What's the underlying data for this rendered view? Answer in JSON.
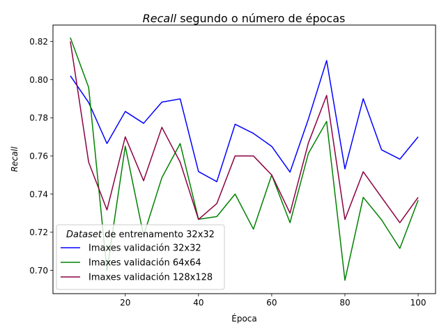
{
  "chart_data": {
    "type": "line",
    "title_italic": "Recall",
    "title_rest": " segundo o número de épocas",
    "xlabel": "Época",
    "ylabel": "Recall",
    "xlim": [
      0.25,
      104.75
    ],
    "ylim": [
      0.6878,
      0.8286
    ],
    "xticks": [
      20,
      40,
      60,
      80,
      100
    ],
    "xtick_labels": [
      "20",
      "40",
      "60",
      "80",
      "100"
    ],
    "yticks": [
      0.7,
      0.72,
      0.74,
      0.76,
      0.78,
      0.8,
      0.82
    ],
    "ytick_labels": [
      "0.70",
      "0.72",
      "0.74",
      "0.76",
      "0.78",
      "0.80",
      "0.82"
    ],
    "grid": false,
    "legend": {
      "placement": "lower-left",
      "title_italic": "Dataset",
      "title_rest": " de entrenamento 32x32"
    },
    "x": [
      5,
      10,
      15,
      20,
      25,
      30,
      35,
      40,
      45,
      50,
      55,
      60,
      65,
      70,
      75,
      80,
      85,
      90,
      95,
      100
    ],
    "series": [
      {
        "name": "Imaxes validación 32x32",
        "color": "#0000ff",
        "values": [
          0.802,
          0.788,
          0.7665,
          0.7833,
          0.7771,
          0.7882,
          0.7899,
          0.7518,
          0.7465,
          0.7766,
          0.7718,
          0.765,
          0.7515,
          0.7792,
          0.81,
          0.7532,
          0.79,
          0.7632,
          0.7583,
          0.77
        ]
      },
      {
        "name": "Imaxes validación 64x64",
        "color": "#008000",
        "values": [
          0.822,
          0.7959,
          0.6999,
          0.7651,
          0.7182,
          0.7486,
          0.7665,
          0.7268,
          0.7282,
          0.74,
          0.7216,
          0.75,
          0.725,
          0.7612,
          0.7781,
          0.6948,
          0.7383,
          0.7265,
          0.7115,
          0.7368
        ]
      },
      {
        "name": "Imaxes validación 128x128",
        "color": "#8b0040",
        "values": [
          0.82,
          0.7567,
          0.7317,
          0.77,
          0.747,
          0.775,
          0.7567,
          0.7267,
          0.735,
          0.76,
          0.76,
          0.75,
          0.73,
          0.7667,
          0.7917,
          0.7267,
          0.7517,
          0.7383,
          0.725,
          0.7383
        ]
      }
    ]
  }
}
